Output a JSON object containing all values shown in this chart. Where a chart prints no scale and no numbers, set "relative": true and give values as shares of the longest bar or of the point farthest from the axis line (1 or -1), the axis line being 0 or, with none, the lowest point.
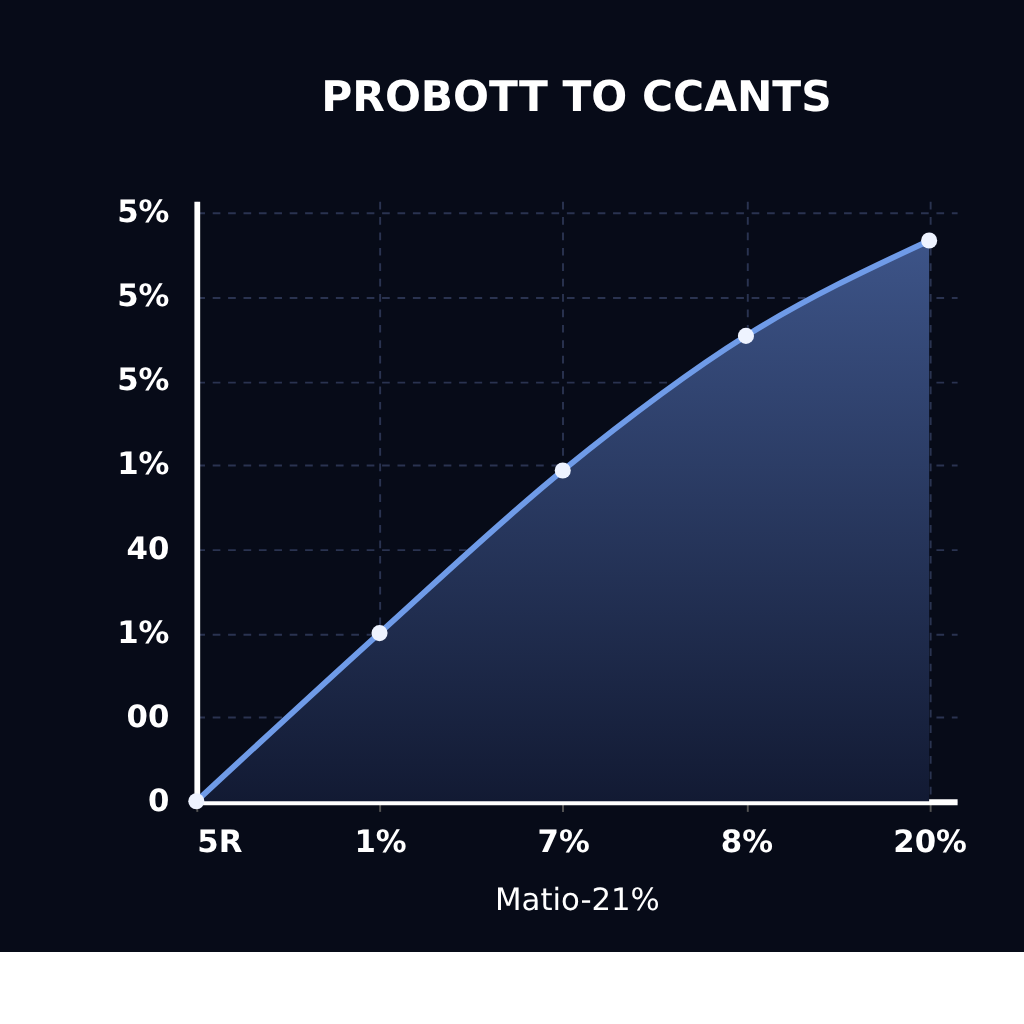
{
  "chart_data": {
    "type": "area",
    "title": "PROBOTT TO CCANTS",
    "xlabel": "Matio-21%",
    "categories": [
      "5R",
      "1%",
      "7%",
      "8%",
      "20%"
    ],
    "relative": true,
    "series": [
      {
        "color": "#6f9be8",
        "values": [
          0,
          0.3,
          0.59,
          0.83,
          1
        ]
      }
    ],
    "annotations": [
      "0",
      "00",
      "1%",
      "40",
      "1%",
      "5%",
      "5%",
      "5%"
    ],
    "grid": true,
    "marker": "circle",
    "line_style": "solid"
  }
}
